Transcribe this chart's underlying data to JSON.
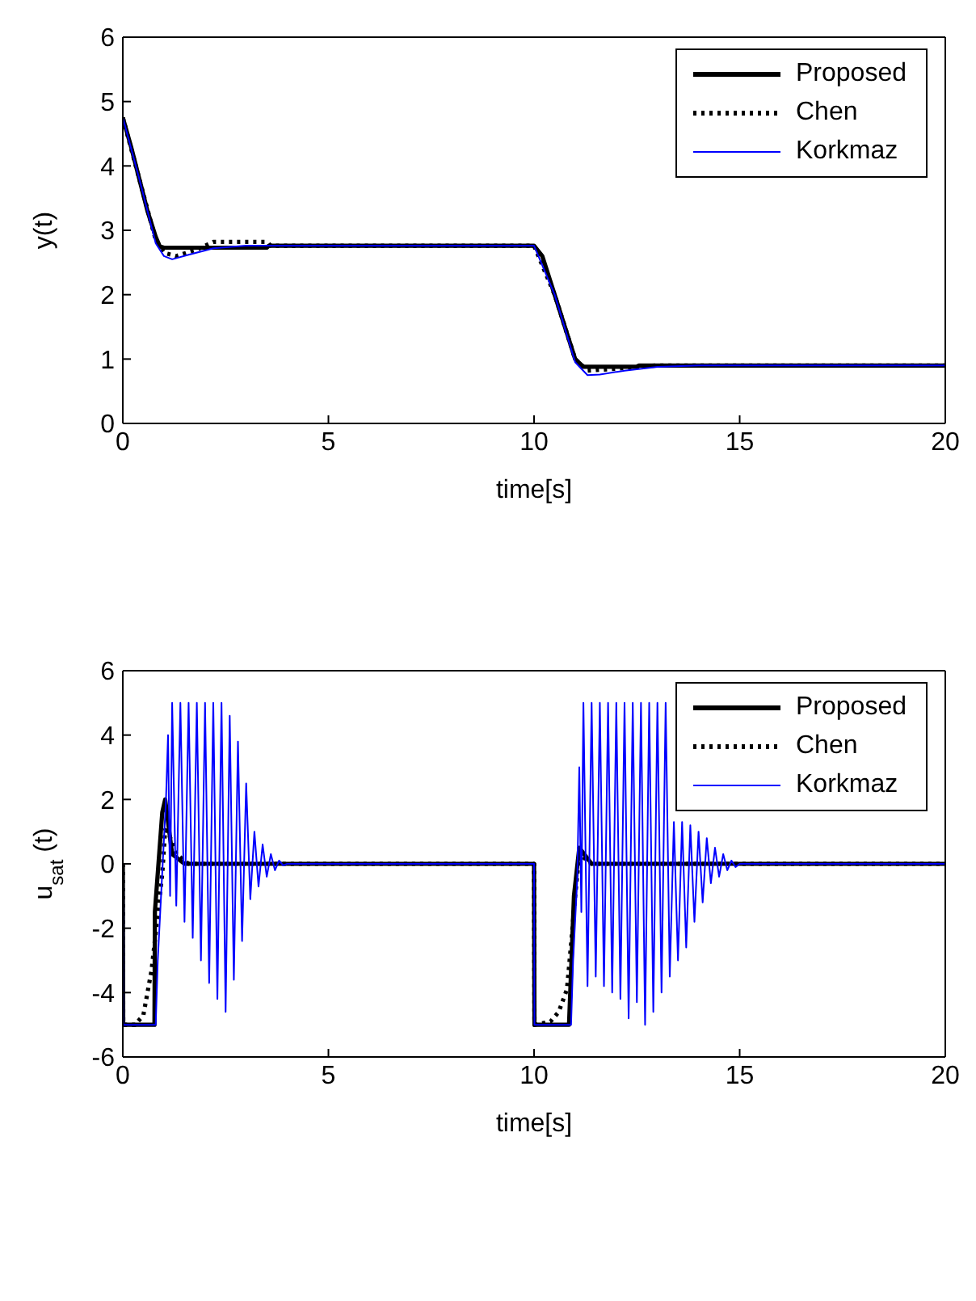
{
  "chart_data": [
    {
      "type": "line",
      "xlabel": "time[s]",
      "ylabel": "y(t)",
      "xlim": [
        0,
        20
      ],
      "xticks": [
        0,
        5,
        10,
        15,
        20
      ],
      "ylim": [
        0,
        6
      ],
      "yticks": [
        0,
        1,
        2,
        3,
        4,
        5,
        6
      ],
      "legend": "top right",
      "marker": "none",
      "series": [
        {
          "name": "Proposed",
          "color": "#000000",
          "line_style": "solid",
          "x": [
            0,
            0.2,
            0.4,
            0.6,
            0.8,
            0.9,
            1.0,
            3.5,
            3.55,
            10,
            10.2,
            10.5,
            10.8,
            11.0,
            11.2,
            12.5,
            12.55,
            20
          ],
          "values": [
            4.75,
            4.3,
            3.8,
            3.3,
            2.9,
            2.75,
            2.73,
            2.73,
            2.76,
            2.76,
            2.6,
            2.0,
            1.4,
            1.0,
            0.88,
            0.88,
            0.9,
            0.9
          ]
        },
        {
          "name": "Chen",
          "color": "#000000",
          "line_style": "dotted",
          "x": [
            0,
            0.4,
            0.8,
            1.0,
            1.3,
            1.8,
            2.2,
            3.5,
            3.6,
            10,
            10.5,
            11.0,
            11.3,
            12,
            12.5,
            13,
            20
          ],
          "values": [
            4.75,
            3.8,
            2.85,
            2.65,
            2.6,
            2.7,
            2.82,
            2.82,
            2.76,
            2.76,
            2.0,
            1.0,
            0.82,
            0.85,
            0.88,
            0.9,
            0.9
          ]
        },
        {
          "name": "Korkmaz",
          "color": "#0000ff",
          "line_style": "solid",
          "x": [
            0,
            0.4,
            0.8,
            1.0,
            1.2,
            1.6,
            2.2,
            3,
            10,
            10.5,
            11.0,
            11.3,
            11.6,
            12.2,
            13,
            14,
            20
          ],
          "values": [
            4.75,
            3.8,
            2.8,
            2.6,
            2.55,
            2.62,
            2.72,
            2.76,
            2.76,
            2.0,
            0.95,
            0.75,
            0.76,
            0.82,
            0.88,
            0.9,
            0.9
          ]
        }
      ]
    },
    {
      "type": "line",
      "xlabel": "time[s]",
      "ylabel": "u$_{sat}$ (t)",
      "xlim": [
        0,
        20
      ],
      "xticks": [
        0,
        5,
        10,
        15,
        20
      ],
      "ylim": [
        -6,
        6
      ],
      "yticks": [
        -6,
        -4,
        -2,
        0,
        2,
        4,
        6
      ],
      "legend": "top right",
      "marker": "none",
      "series": [
        {
          "name": "Proposed",
          "color": "#000000",
          "line_style": "solid",
          "x": [
            0,
            0.01,
            0.77,
            0.78,
            0.96,
            1.03,
            1.2,
            1.5,
            10,
            10.01,
            10.85,
            10.97,
            11.1,
            11.4,
            20
          ],
          "values": [
            0,
            -5,
            -5,
            -1.5,
            1.6,
            2.0,
            0.3,
            0,
            0,
            -5,
            -5,
            -1,
            0.5,
            0,
            0
          ]
        },
        {
          "name": "Chen",
          "color": "#000000",
          "line_style": "dotted",
          "x": [
            0,
            0.01,
            0.3,
            0.5,
            0.7,
            0.96,
            1.03,
            1.1,
            1.3,
            1.6,
            10,
            10.01,
            10.4,
            10.6,
            10.8,
            10.9,
            11.0,
            11.1,
            11.4,
            20
          ],
          "values": [
            0,
            -5,
            -5,
            -4.7,
            -3.3,
            -0.3,
            1.05,
            1.0,
            0.3,
            0,
            0,
            -5,
            -4.9,
            -4.6,
            -3.9,
            -2.5,
            -1,
            0.3,
            0,
            0
          ]
        },
        {
          "name": "Korkmaz",
          "color": "#0000ff",
          "line_style": "solid",
          "x": [
            0,
            0.01,
            0.8,
            0.85,
            0.95,
            1.05,
            1.1,
            1.15,
            1.2,
            1.3,
            1.4,
            1.5,
            1.6,
            1.7,
            1.8,
            1.9,
            2.0,
            2.1,
            2.2,
            2.3,
            2.4,
            2.5,
            2.6,
            2.7,
            2.8,
            2.9,
            3.0,
            3.1,
            3.2,
            3.3,
            3.4,
            3.5,
            3.6,
            3.7,
            3.8,
            3.9,
            4.0,
            10,
            10.01,
            10.9,
            10.95,
            11.05,
            11.1,
            11.15,
            11.2,
            11.3,
            11.4,
            11.5,
            11.6,
            11.7,
            11.8,
            11.9,
            12.0,
            12.1,
            12.2,
            12.3,
            12.4,
            12.5,
            12.6,
            12.7,
            12.8,
            12.9,
            13.0,
            13.1,
            13.2,
            13.3,
            13.4,
            13.5,
            13.6,
            13.7,
            13.8,
            13.9,
            14.0,
            14.1,
            14.2,
            14.3,
            14.4,
            14.5,
            14.6,
            14.7,
            14.8,
            14.9,
            15.0,
            20
          ],
          "values": [
            0,
            -5,
            -5,
            -3,
            -0.5,
            2,
            4.0,
            -1.0,
            5,
            -1.3,
            5,
            -1.8,
            5,
            -2.3,
            5,
            -3.0,
            5,
            -3.7,
            5,
            -4.2,
            5,
            -4.6,
            4.6,
            -3.6,
            3.8,
            -2.4,
            2.5,
            -1.1,
            1.0,
            -0.7,
            0.6,
            -0.4,
            0.3,
            -0.2,
            0.1,
            -0.05,
            0,
            0,
            -5,
            -5,
            -3,
            -0.5,
            3.0,
            -1.5,
            5,
            -3.8,
            5,
            -3.5,
            5,
            -3.8,
            5,
            -4.0,
            5,
            -4.2,
            5,
            -4.8,
            5,
            -4.3,
            5,
            -5,
            5,
            -4.6,
            5,
            -4.0,
            5,
            -3.5,
            1.3,
            -3.0,
            1.3,
            -2.6,
            1.2,
            -1.8,
            1.0,
            -1.2,
            0.8,
            -0.6,
            0.5,
            -0.4,
            0.3,
            -0.2,
            0.1,
            -0.1,
            0,
            0
          ]
        }
      ]
    }
  ]
}
